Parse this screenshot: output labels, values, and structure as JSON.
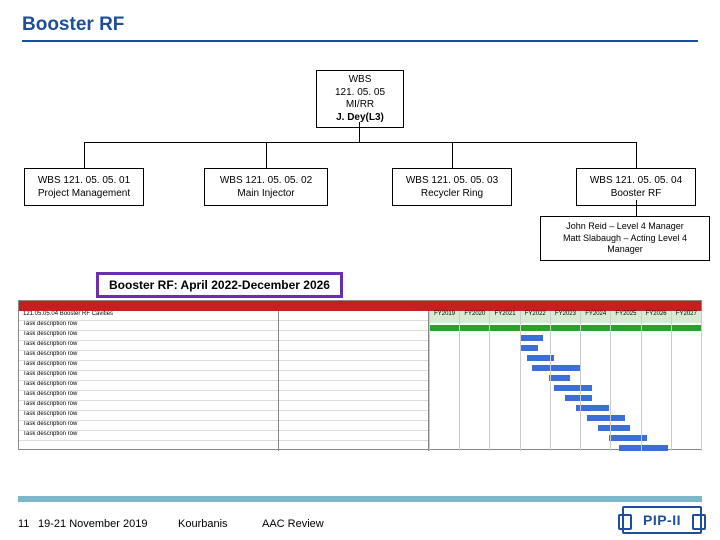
{
  "colors": {
    "title": "#1f4e9c",
    "underline": "#1f4e9c",
    "caption_border": "#6a2fb0",
    "gantt_header": "#c81e1e",
    "gantt_fy_header_bg": "#d9ead3",
    "bar_green": "#2ba02b",
    "bar_blue": "#3a6fd8",
    "footer_band": "#7db7c9",
    "logo": "#1f4e9c"
  },
  "title": "Booster RF",
  "org": {
    "root": {
      "l1": "WBS",
      "l2": "121. 05. 05",
      "l3": "MI/RR",
      "l4": "J. Dey(L3)"
    },
    "children": [
      {
        "code": "WBS 121. 05. 05. 01",
        "label": "Project Management"
      },
      {
        "code": "WBS 121. 05. 05. 02",
        "label": "Main Injector"
      },
      {
        "code": "WBS 121. 05. 05. 03",
        "label": "Recycler Ring"
      },
      {
        "code": "WBS 121. 05. 05. 04",
        "label": "Booster RF"
      }
    ],
    "manager_note": {
      "line1": "John Reid – Level 4 Manager",
      "line2": "Matt Slabaugh – Acting Level 4 Manager"
    }
  },
  "timeline_caption": "Booster RF: April 2022-December 2026",
  "gantt": {
    "fy_labels": [
      "FY2019",
      "FY2020",
      "FY2021",
      "FY2022",
      "FY2023",
      "FY2024",
      "FY2025",
      "FY2026",
      "FY2027"
    ],
    "rows": [
      "121.05.05.04    Booster RF Cavities",
      "Task description row",
      "Task description row",
      "Task description row",
      "Task description row",
      "Task description row",
      "Task description row",
      "Task description row",
      "Task description row",
      "Task description row",
      "Task description row",
      "Task description row",
      "Task description row"
    ],
    "bars": [
      {
        "row": 0,
        "start_pct": 0,
        "width_pct": 100,
        "cls": "green"
      },
      {
        "row": 1,
        "start_pct": 34,
        "width_pct": 8,
        "cls": "blue"
      },
      {
        "row": 2,
        "start_pct": 34,
        "width_pct": 6,
        "cls": "blue"
      },
      {
        "row": 3,
        "start_pct": 36,
        "width_pct": 10,
        "cls": "blue"
      },
      {
        "row": 4,
        "start_pct": 38,
        "width_pct": 18,
        "cls": "blue"
      },
      {
        "row": 5,
        "start_pct": 44,
        "width_pct": 8,
        "cls": "blue"
      },
      {
        "row": 6,
        "start_pct": 46,
        "width_pct": 14,
        "cls": "blue"
      },
      {
        "row": 7,
        "start_pct": 50,
        "width_pct": 10,
        "cls": "blue"
      },
      {
        "row": 8,
        "start_pct": 54,
        "width_pct": 12,
        "cls": "blue"
      },
      {
        "row": 9,
        "start_pct": 58,
        "width_pct": 14,
        "cls": "blue"
      },
      {
        "row": 10,
        "start_pct": 62,
        "width_pct": 12,
        "cls": "blue"
      },
      {
        "row": 11,
        "start_pct": 66,
        "width_pct": 14,
        "cls": "blue"
      },
      {
        "row": 12,
        "start_pct": 70,
        "width_pct": 18,
        "cls": "blue"
      }
    ]
  },
  "footer": {
    "page": "11",
    "date": "19-21 November 2019",
    "presenter": "Kourbanis",
    "meeting": "AAC Review",
    "logo_text": "PIP-II"
  }
}
